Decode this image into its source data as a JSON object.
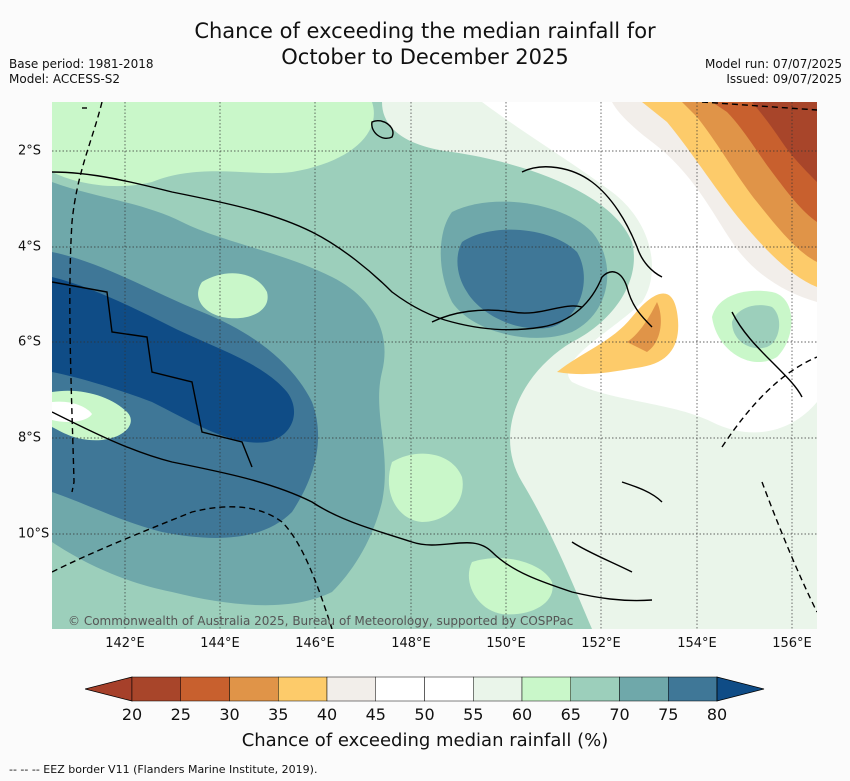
{
  "title": {
    "line1": "Chance of exceeding the median rainfall for",
    "line2": "October to December 2025"
  },
  "meta": {
    "base_period": "Base period: 1981-2018",
    "model": "Model: ACCESS-S2",
    "model_run": "Model run: 07/07/2025",
    "issued": "Issued: 09/07/2025"
  },
  "map": {
    "copyright": "© Commonwealth of Australia 2025, Bureau of Meteorology, supported by COSPPac",
    "lon_labels": [
      "142°E",
      "144°E",
      "146°E",
      "148°E",
      "150°E",
      "152°E",
      "154°E",
      "156°E"
    ],
    "lat_labels": [
      "2°S",
      "4°S",
      "6°S",
      "8°S",
      "10°S"
    ]
  },
  "colorbar": {
    "label": "Chance of exceeding median rainfall (%)",
    "ticks": [
      "20",
      "25",
      "30",
      "35",
      "40",
      "45",
      "50",
      "55",
      "60",
      "65",
      "70",
      "75",
      "80"
    ],
    "under_color": "#a6402a",
    "over_color": "#0f4c86",
    "colors": [
      "#a8452a",
      "#c8602e",
      "#e09448",
      "#fdcb6a",
      "#f2eeea",
      "#ffffff",
      "#ffffff",
      "#eaf5ea",
      "#c9f7c9",
      "#9ccfbb",
      "#6fa8aa",
      "#3f7797"
    ]
  },
  "footer": "--  --  -- EEZ border V11 (Flanders Marine Institute, 2019)."
}
